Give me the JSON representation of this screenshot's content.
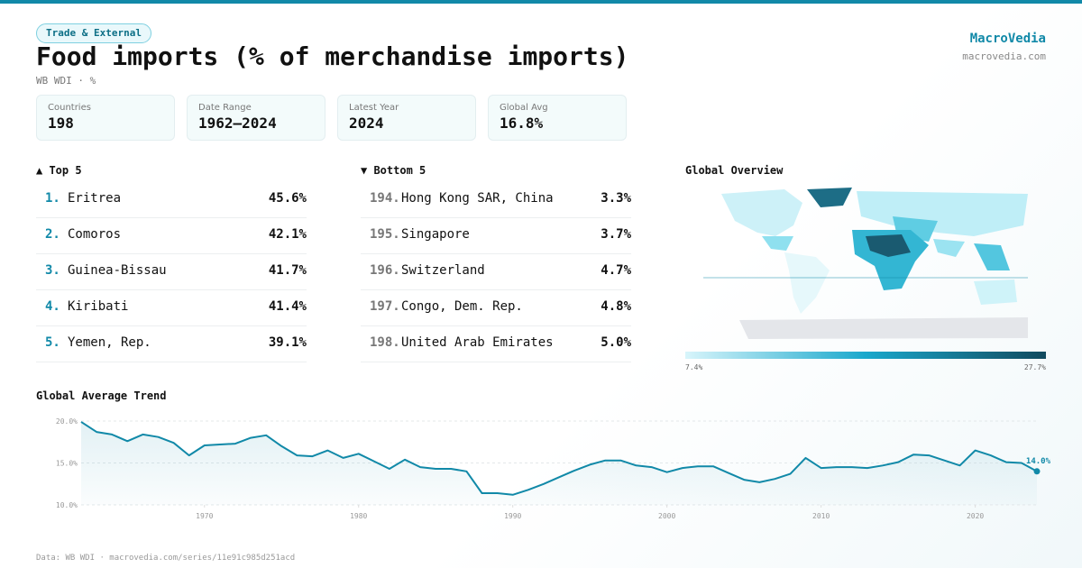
{
  "header": {
    "tag": "Trade & External",
    "title": "Food imports (% of merchandise imports)",
    "subtitle": "WB WDI · %",
    "brand": "MacroVedia",
    "brand_url": "macrovedia.com"
  },
  "stats": [
    {
      "label": "Countries",
      "value": "198"
    },
    {
      "label": "Date Range",
      "value": "1962–2024"
    },
    {
      "label": "Latest Year",
      "value": "2024"
    },
    {
      "label": "Global Avg",
      "value": "16.8%"
    }
  ],
  "top": {
    "title": "▲ Top 5",
    "rows": [
      {
        "rank": "1.",
        "name": "Eritrea",
        "value": "45.6%"
      },
      {
        "rank": "2.",
        "name": "Comoros",
        "value": "42.1%"
      },
      {
        "rank": "3.",
        "name": "Guinea-Bissau",
        "value": "41.7%"
      },
      {
        "rank": "4.",
        "name": "Kiribati",
        "value": "41.4%"
      },
      {
        "rank": "5.",
        "name": "Yemen, Rep.",
        "value": "39.1%"
      }
    ]
  },
  "bottom": {
    "title": "▼ Bottom 5",
    "rows": [
      {
        "rank": "194.",
        "name": "Hong Kong SAR, China",
        "value": "3.3%"
      },
      {
        "rank": "195.",
        "name": "Singapore",
        "value": "3.7%"
      },
      {
        "rank": "196.",
        "name": "Switzerland",
        "value": "4.7%"
      },
      {
        "rank": "197.",
        "name": "Congo, Dem. Rep.",
        "value": "4.8%"
      },
      {
        "rank": "198.",
        "name": "United Arab Emirates",
        "value": "5.0%"
      }
    ]
  },
  "map": {
    "title": "Global Overview",
    "scale_min": "7.4%",
    "scale_max": "27.7%"
  },
  "chart_data": {
    "type": "area",
    "title": "Global Average Trend",
    "color": "#1189a8",
    "x": [
      1962,
      1963,
      1964,
      1965,
      1966,
      1967,
      1968,
      1969,
      1970,
      1971,
      1972,
      1973,
      1974,
      1975,
      1976,
      1977,
      1978,
      1979,
      1980,
      1981,
      1982,
      1983,
      1984,
      1985,
      1986,
      1987,
      1988,
      1989,
      1990,
      1991,
      1992,
      1993,
      1994,
      1995,
      1996,
      1997,
      1998,
      1999,
      2000,
      2001,
      2002,
      2003,
      2004,
      2005,
      2006,
      2007,
      2008,
      2009,
      2010,
      2011,
      2012,
      2013,
      2014,
      2015,
      2016,
      2017,
      2018,
      2019,
      2020,
      2021,
      2022,
      2023,
      2024
    ],
    "values": [
      19.9,
      18.7,
      18.4,
      17.6,
      18.4,
      18.1,
      17.4,
      15.9,
      17.1,
      17.2,
      17.3,
      18.0,
      18.3,
      17.0,
      15.9,
      15.8,
      16.5,
      15.6,
      16.1,
      15.2,
      14.3,
      15.4,
      14.5,
      14.3,
      14.3,
      14.0,
      11.4,
      11.4,
      11.2,
      11.8,
      12.5,
      13.3,
      14.1,
      14.8,
      15.3,
      15.3,
      14.7,
      14.5,
      13.9,
      14.4,
      14.6,
      14.6,
      13.8,
      13.0,
      12.7,
      13.1,
      13.7,
      15.6,
      14.4,
      14.5,
      14.5,
      14.4,
      14.7,
      15.1,
      16.0,
      15.9,
      15.3,
      14.7,
      16.5,
      15.9,
      15.1,
      15.0,
      14.0
    ],
    "value_labels": [
      null,
      null,
      null,
      null,
      null,
      null,
      null,
      null,
      null,
      null,
      null,
      null,
      null,
      null,
      null,
      null,
      null,
      null,
      null,
      null,
      null,
      null,
      null,
      null,
      null,
      null,
      null,
      null,
      null,
      null,
      null,
      null,
      null,
      null,
      null,
      null,
      null,
      null,
      null,
      null,
      null,
      null,
      null,
      null,
      null,
      null,
      null,
      null,
      null,
      null,
      null,
      null,
      null,
      null,
      null,
      null,
      null,
      null,
      null,
      null,
      null,
      null,
      "14.0%"
    ],
    "xlim": [
      1962,
      2024
    ],
    "xticks": [
      1970,
      1980,
      1990,
      2000,
      2010,
      2020
    ],
    "ylim": [
      10,
      20
    ],
    "yticks": [
      {
        "value": 10,
        "label": "10.0%"
      },
      {
        "value": 15,
        "label": "15.0%"
      },
      {
        "value": 20,
        "label": "20.0%"
      }
    ],
    "grid": true
  },
  "footer": "Data: WB WDI · macrovedia.com/series/11e91c985d251acd"
}
